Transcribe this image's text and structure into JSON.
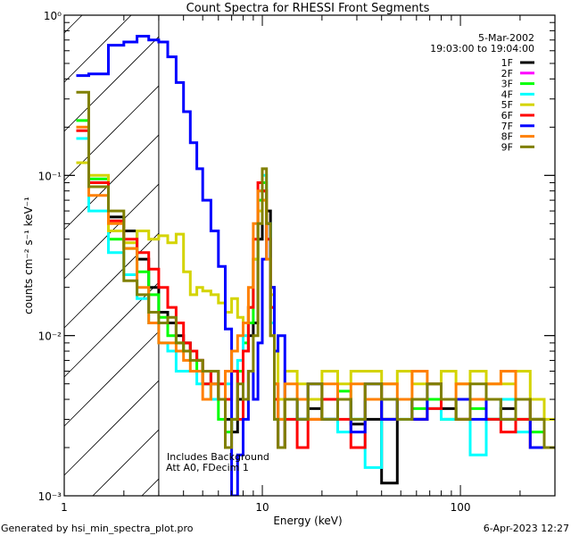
{
  "chart_data": {
    "type": "line",
    "title": "Count Spectra for RHESSI Front Segments",
    "xlabel": "Energy (keV)",
    "ylabel": "counts cm⁻² s⁻¹ keV⁻¹",
    "xscale": "log",
    "yscale": "log",
    "xlim": [
      1,
      300
    ],
    "ylim": [
      0.001,
      1
    ],
    "x_ticks": [
      {
        "value": 1,
        "label": "1"
      },
      {
        "value": 10,
        "label": "10"
      },
      {
        "value": 100,
        "label": "100"
      }
    ],
    "y_ticks": [
      {
        "value": 1,
        "label": "10⁰"
      },
      {
        "value": 0.1,
        "label": "10⁻¹"
      },
      {
        "value": 0.01,
        "label": "10⁻²"
      },
      {
        "value": 0.001,
        "label": "10⁻³"
      }
    ],
    "legend_position": "top-right",
    "legend_header": [
      "5-Mar-2002",
      "19:03:00 to 19:04:00"
    ],
    "annotations": [
      "Includes Background",
      "Att A0, FDecim 1"
    ],
    "hatched_region_keV": [
      1,
      3
    ],
    "energy_bin_edges": [
      1.15,
      1.33,
      1.67,
      2.0,
      2.33,
      2.67,
      3.0,
      3.33,
      3.67,
      4.0,
      4.33,
      4.67,
      5.0,
      5.5,
      6.0,
      6.5,
      7.0,
      7.5,
      8.0,
      8.5,
      9.0,
      9.5,
      10,
      10.5,
      11,
      11.5,
      12,
      13,
      15,
      17,
      20,
      24,
      28,
      33,
      40,
      48,
      57,
      68,
      80,
      95,
      112,
      135,
      160,
      190,
      225,
      265,
      300
    ],
    "series": [
      {
        "name": "1F",
        "color": "#000000",
        "values": [
          0.17,
          0.085,
          0.055,
          0.045,
          0.03,
          0.02,
          0.014,
          0.012,
          0.01,
          0.009,
          0.008,
          0.007,
          0.006,
          0.005,
          0.004,
          0.003,
          0.0025,
          0.004,
          0.008,
          0.01,
          0.012,
          0.04,
          0.08,
          0.06,
          0.02,
          0.005,
          0.002,
          0.004,
          0.003,
          0.0035,
          0.003,
          0.004,
          0.0028,
          0.003,
          0.0012,
          0.004,
          0.003,
          0.004,
          0.0035,
          0.003,
          0.004,
          0.003,
          0.0035,
          0.004,
          0.003,
          0.002
        ]
      },
      {
        "name": "2F",
        "color": "#ff00ff",
        "values": [
          null,
          null,
          null,
          null,
          null,
          null,
          null,
          null,
          null,
          null,
          null,
          null,
          null,
          null,
          null,
          null,
          null,
          null,
          null,
          null,
          null,
          null,
          null,
          null,
          null,
          null,
          null,
          null,
          null,
          null,
          null,
          null,
          null,
          null,
          null,
          null,
          null,
          null,
          null,
          null,
          null,
          null,
          null,
          null,
          null,
          null
        ]
      },
      {
        "name": "3F",
        "color": "#00ff00",
        "values": [
          0.22,
          0.095,
          0.04,
          0.035,
          0.025,
          0.018,
          0.013,
          0.01,
          0.009,
          0.008,
          0.008,
          0.006,
          0.005,
          0.004,
          0.003,
          0.0025,
          0.003,
          0.006,
          0.009,
          0.012,
          0.03,
          0.07,
          0.09,
          0.05,
          0.015,
          0.004,
          0.003,
          0.004,
          0.003,
          0.004,
          0.003,
          0.0045,
          0.003,
          0.004,
          0.003,
          0.004,
          0.0035,
          0.004,
          0.003,
          0.004,
          0.0035,
          0.003,
          0.004,
          0.003,
          0.0025,
          0.002
        ]
      },
      {
        "name": "4F",
        "color": "#00ffff",
        "values": [
          0.17,
          0.06,
          0.033,
          0.024,
          0.017,
          0.012,
          0.009,
          0.008,
          0.006,
          0.006,
          0.006,
          0.005,
          0.005,
          0.004,
          0.004,
          0.005,
          0.006,
          0.007,
          0.01,
          0.015,
          0.03,
          0.08,
          0.1,
          0.05,
          0.012,
          0.003,
          0.002,
          0.003,
          0.003,
          0.004,
          0.003,
          0.0025,
          0.003,
          0.0015,
          0.004,
          0.003,
          0.004,
          0.0035,
          0.003,
          0.004,
          0.0018,
          0.003,
          0.004,
          0.0025,
          0.003,
          0.002
        ]
      },
      {
        "name": "5F",
        "color": "#d4d400",
        "values": [
          0.12,
          0.1,
          0.045,
          0.038,
          0.045,
          0.04,
          0.042,
          0.038,
          0.043,
          0.025,
          0.018,
          0.02,
          0.019,
          0.018,
          0.016,
          0.014,
          0.017,
          0.013,
          0.012,
          0.015,
          0.03,
          0.06,
          0.07,
          0.04,
          0.018,
          0.008,
          0.004,
          0.006,
          0.005,
          0.004,
          0.006,
          0.005,
          0.006,
          0.006,
          0.005,
          0.006,
          0.005,
          0.005,
          0.006,
          0.005,
          0.006,
          0.005,
          0.005,
          0.006,
          0.004,
          0.003
        ]
      },
      {
        "name": "6F",
        "color": "#ff0000",
        "values": [
          0.19,
          0.09,
          0.052,
          0.04,
          0.033,
          0.026,
          0.02,
          0.015,
          0.012,
          0.009,
          0.008,
          0.007,
          0.005,
          0.006,
          0.005,
          0.004,
          0.006,
          0.003,
          0.008,
          0.015,
          0.04,
          0.09,
          0.08,
          0.04,
          0.015,
          0.004,
          0.002,
          0.003,
          0.002,
          0.003,
          0.004,
          0.003,
          0.002,
          0.004,
          0.003,
          0.004,
          0.003,
          0.0035,
          0.004,
          0.003,
          0.004,
          0.003,
          0.0025,
          0.003,
          0.002,
          0.002
        ]
      },
      {
        "name": "7F",
        "color": "#0000ff",
        "values": [
          0.42,
          0.43,
          0.65,
          0.68,
          0.74,
          0.7,
          0.68,
          0.55,
          0.38,
          0.25,
          0.16,
          0.11,
          0.07,
          0.045,
          0.027,
          0.011,
          0.0009,
          0.0018,
          0.003,
          0.006,
          0.004,
          0.009,
          0.03,
          0.05,
          0.02,
          0.008,
          0.01,
          0.004,
          0.003,
          0.005,
          0.003,
          0.004,
          0.0025,
          0.005,
          0.003,
          0.004,
          0.003,
          0.005,
          0.004,
          0.004,
          0.003,
          0.004,
          0.003,
          0.004,
          0.002,
          0.002
        ]
      },
      {
        "name": "8F",
        "color": "#ff8000",
        "values": [
          0.2,
          0.075,
          0.05,
          0.035,
          0.02,
          0.012,
          0.009,
          0.009,
          0.008,
          0.007,
          0.006,
          0.006,
          0.004,
          0.005,
          0.004,
          0.006,
          0.008,
          0.01,
          0.012,
          0.02,
          0.05,
          0.08,
          0.07,
          0.03,
          0.01,
          0.005,
          0.003,
          0.005,
          0.004,
          0.003,
          0.005,
          0.004,
          0.005,
          0.004,
          0.005,
          0.004,
          0.006,
          0.005,
          0.004,
          0.005,
          0.004,
          0.005,
          0.006,
          0.004,
          0.003,
          0.002
        ]
      },
      {
        "name": "9F",
        "color": "#808000",
        "values": [
          0.33,
          0.085,
          0.06,
          0.022,
          0.018,
          0.014,
          0.012,
          0.013,
          0.009,
          0.008,
          0.007,
          0.007,
          0.006,
          0.006,
          0.004,
          0.002,
          0.003,
          0.005,
          0.004,
          0.006,
          0.01,
          0.05,
          0.11,
          0.05,
          0.01,
          0.003,
          0.002,
          0.004,
          0.003,
          0.005,
          0.003,
          0.004,
          0.003,
          0.005,
          0.004,
          0.003,
          0.004,
          0.005,
          0.004,
          0.003,
          0.005,
          0.004,
          0.003,
          0.004,
          0.003,
          0.002
        ]
      }
    ]
  },
  "footer": {
    "generated_by": "Generated by hsi_min_spectra_plot.pro",
    "timestamp": "6-Apr-2023 12:27"
  }
}
